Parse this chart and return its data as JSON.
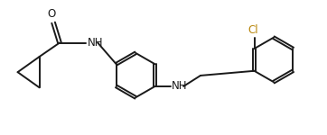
{
  "background": "#ffffff",
  "line_color": "#1a1a1a",
  "line_width": 1.4,
  "text_color": "#1a1a1a",
  "cl_color": "#b8860b",
  "font_size": 8.5,
  "xlim": [
    0,
    10.5
  ],
  "ylim": [
    0,
    4.2
  ]
}
